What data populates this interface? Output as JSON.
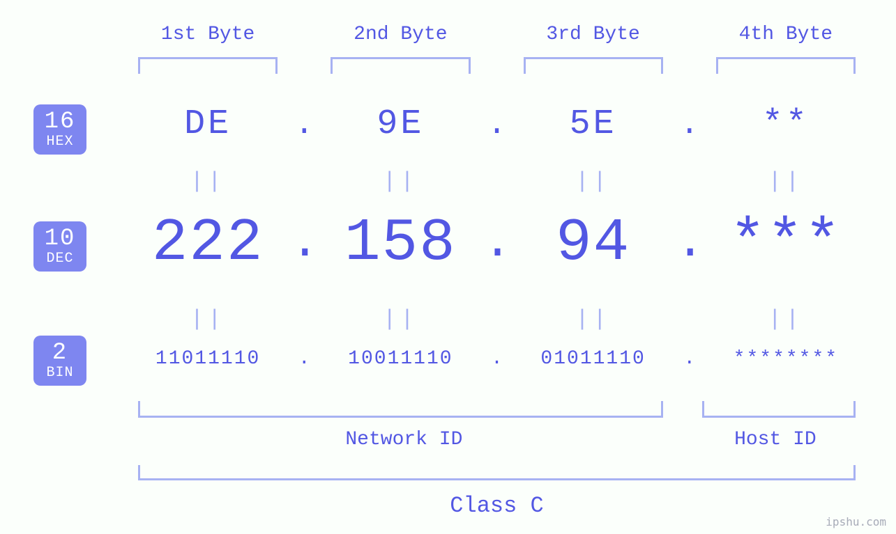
{
  "colors": {
    "background": "#fbfffb",
    "accent": "#5257e3",
    "bracket": "#a7b2f2",
    "badge_bg": "#7e86f0",
    "equals": "#a7b2f2",
    "watermark": "#a7abb8"
  },
  "fonts": {
    "family": "monospace",
    "byte_label_size": 28,
    "hex_size": 50,
    "dec_size": 86,
    "bin_size": 28,
    "equals_size": 32,
    "nethost_label_size": 28,
    "class_label_size": 32,
    "badge_num_size": 34,
    "badge_text_size": 20
  },
  "badges": {
    "hex": {
      "num": "16",
      "label": "HEX"
    },
    "dec": {
      "num": "10",
      "label": "DEC"
    },
    "bin": {
      "num": "2",
      "label": "BIN"
    }
  },
  "byte_labels": [
    "1st Byte",
    "2nd Byte",
    "3rd Byte",
    "4th Byte"
  ],
  "hex": [
    "DE",
    "9E",
    "5E",
    "**"
  ],
  "dec": [
    "222",
    "158",
    "94",
    "***"
  ],
  "bin": [
    "11011110",
    "10011110",
    "01011110",
    "********"
  ],
  "dot": ".",
  "equals_glyph": "||",
  "network_id_label": "Network ID",
  "host_id_label": "Host ID",
  "class_label": "Class C",
  "watermark": "ipshu.com"
}
